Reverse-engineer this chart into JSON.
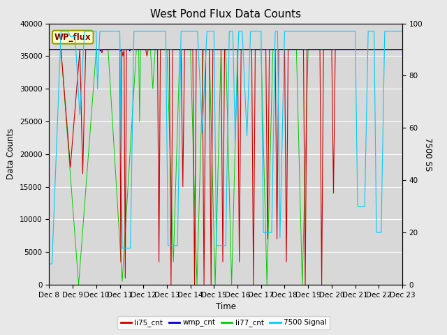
{
  "title": "West Pond Flux Data Counts",
  "xlabel": "Time",
  "ylabel_left": "Data Counts",
  "ylabel_right": "7500 SS",
  "ylim_left": [
    0,
    40000
  ],
  "ylim_right": [
    0,
    100
  ],
  "background_color": "#d8d8d8",
  "legend_box_label": "WP_flux",
  "legend_box_bg": "#ffffcc",
  "legend_box_border": "#999900",
  "xtick_labels": [
    "Dec 8",
    "Dec 9",
    "Dec 10",
    "Dec 11",
    "Dec 12",
    "Dec 13",
    "Dec 14",
    "Dec 15",
    "Dec 16",
    "Dec 17",
    "Dec 18",
    "Dec 19",
    "Dec 20",
    "Dec 21",
    "Dec 22",
    "Dec 23"
  ],
  "series_colors": {
    "li75_cnt": "#cc0000",
    "wmp_cnt": "#0000cc",
    "li77_cnt": "#00cc00",
    "signal_7500": "#00ccff"
  },
  "gridcolor": "#ffffff",
  "tick_fontsize": 7.5,
  "title_fontsize": 11,
  "fig_bg": "#e8e8e8"
}
